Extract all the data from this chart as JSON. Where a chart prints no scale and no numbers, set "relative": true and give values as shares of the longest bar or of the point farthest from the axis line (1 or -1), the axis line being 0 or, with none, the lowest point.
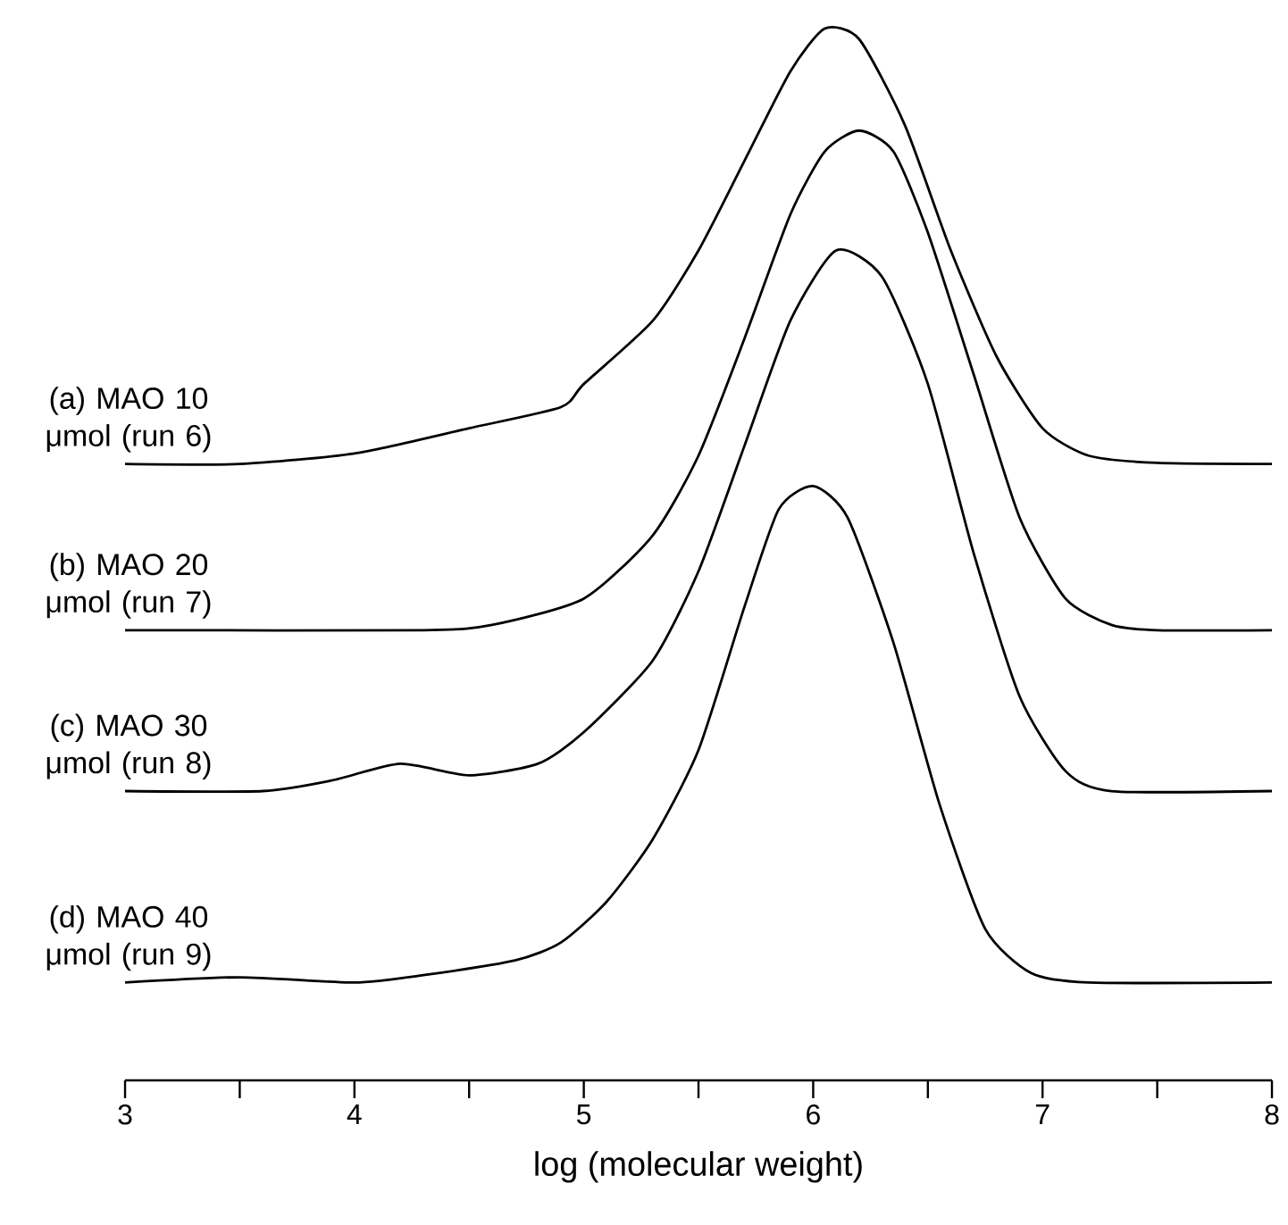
{
  "chart_data": {
    "type": "line",
    "relative": true,
    "xlabel": "log (molecular weight)",
    "xlim": [
      3,
      8
    ],
    "xticks": [
      3,
      {
        "value": 3.5,
        "label": null
      },
      4,
      {
        "value": 4.5,
        "label": null
      },
      5,
      {
        "value": 5.5,
        "label": null
      },
      6,
      {
        "value": 6.5,
        "label": null
      },
      7,
      {
        "value": 7.5,
        "label": null
      },
      8
    ],
    "grid": false,
    "legend": false,
    "marker": "none",
    "line_style": "solid",
    "series": [
      {
        "name": "(a) MAO 10 μmol (run 6)",
        "color": "#000000",
        "x": [
          3,
          3.5,
          4,
          4.5,
          4.9,
          5.0,
          5.3,
          5.5,
          5.7,
          5.9,
          6.05,
          6.2,
          6.4,
          6.6,
          6.8,
          7.0,
          7.2,
          7.5,
          8
        ],
        "values": [
          0.586,
          0.586,
          0.596,
          0.62,
          0.64,
          0.662,
          0.722,
          0.789,
          0.874,
          0.959,
          1.0,
          0.99,
          0.908,
          0.789,
          0.688,
          0.62,
          0.594,
          0.587,
          0.586
        ]
      },
      {
        "name": "(b) MAO 20 μmol (run 7)",
        "color": "#000000",
        "x": [
          3,
          4.3,
          4.6,
          5.0,
          5.3,
          5.5,
          5.7,
          5.9,
          6.05,
          6.2,
          6.35,
          6.5,
          6.7,
          6.9,
          7.1,
          7.3,
          7.5,
          8
        ],
        "values": [
          0.428,
          0.428,
          0.433,
          0.458,
          0.518,
          0.594,
          0.705,
          0.823,
          0.883,
          0.903,
          0.883,
          0.806,
          0.671,
          0.535,
          0.458,
          0.433,
          0.428,
          0.428
        ]
      },
      {
        "name": "(c) MAO 30 μmol (run 8)",
        "color": "#000000",
        "x": [
          3,
          3.6,
          3.9,
          4.2,
          4.5,
          4.8,
          5.0,
          5.3,
          5.5,
          5.7,
          5.9,
          6.1,
          6.3,
          6.5,
          6.7,
          6.9,
          7.1,
          7.3,
          8
        ],
        "values": [
          0.275,
          0.275,
          0.285,
          0.301,
          0.29,
          0.301,
          0.331,
          0.399,
          0.484,
          0.603,
          0.722,
          0.789,
          0.764,
          0.662,
          0.501,
          0.365,
          0.294,
          0.275,
          0.275
        ]
      },
      {
        "name": "(d) MAO 40 μmol (run 9)",
        "color": "#000000",
        "x": [
          3,
          3.5,
          4,
          4.3,
          4.7,
          4.9,
          5.1,
          5.3,
          5.5,
          5.7,
          5.85,
          6.0,
          6.15,
          6.35,
          6.55,
          6.75,
          6.95,
          7.2,
          8
        ],
        "values": [
          0.093,
          0.098,
          0.093,
          0.1,
          0.114,
          0.131,
          0.17,
          0.229,
          0.314,
          0.45,
          0.543,
          0.565,
          0.535,
          0.416,
          0.263,
          0.144,
          0.102,
          0.093,
          0.093
        ]
      }
    ]
  }
}
